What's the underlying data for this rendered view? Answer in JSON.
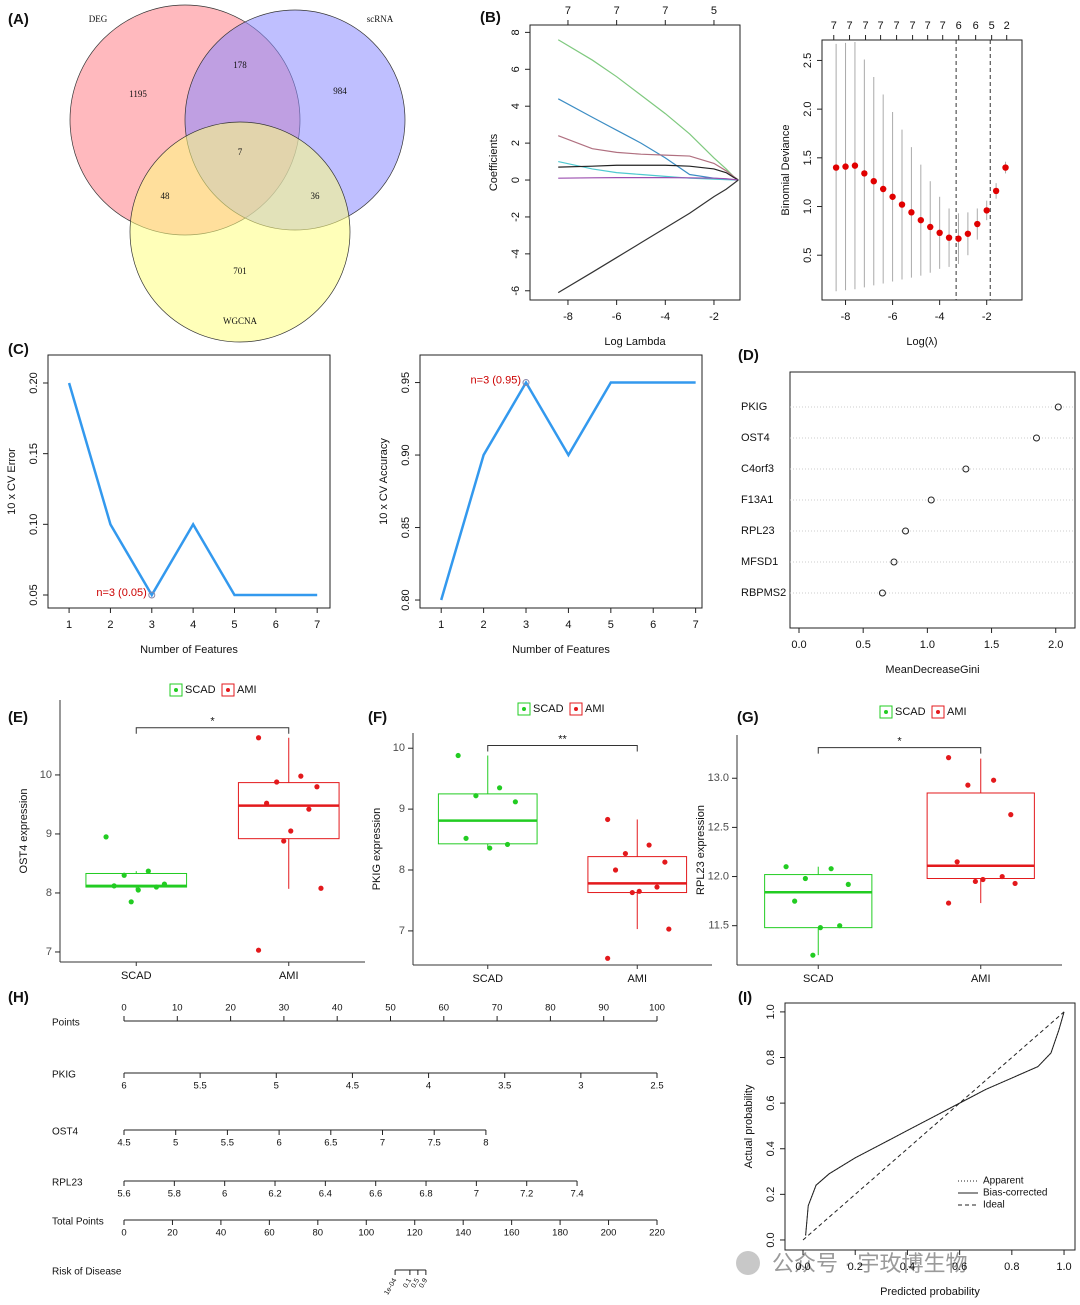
{
  "panel_labels": [
    "(A)",
    "(B)",
    "(C)",
    "(D)",
    "(E)",
    "(F)",
    "(G)",
    "(H)",
    "(I)"
  ],
  "watermark": "公众号 · 宇玫博生物",
  "chart_data": [
    {
      "type": "venn",
      "sets": [
        {
          "name": "DEG",
          "color": "#ff7f88"
        },
        {
          "name": "scRNA",
          "color": "#8a8aff"
        },
        {
          "name": "WGCNA",
          "color": "#ffff80"
        }
      ],
      "counts": [
        1195,
        178,
        984,
        7,
        48,
        36,
        701
      ]
    },
    {
      "type": "line",
      "xlabel": "Log Lambda",
      "ylabel": "Coefficients",
      "x": [
        -8.4,
        -7,
        -6,
        -5,
        -4,
        -3,
        -2,
        -1.5,
        -1.2,
        -1.0
      ],
      "series": [
        {
          "color": "#7fc97f",
          "values": [
            7.6,
            6.5,
            5.6,
            4.6,
            3.6,
            2.5,
            1.2,
            0.6,
            0.2,
            0
          ]
        },
        {
          "color": "#3c8dc4",
          "values": [
            4.4,
            3.4,
            2.7,
            2.0,
            1.2,
            0.3,
            0.1,
            0.05,
            0.02,
            0
          ]
        },
        {
          "color": "#b07080",
          "values": [
            2.4,
            1.7,
            1.5,
            1.4,
            1.35,
            1.3,
            0.9,
            0.5,
            0.2,
            0
          ]
        },
        {
          "color": "#4fc9d0",
          "values": [
            1.0,
            0.6,
            0.4,
            0.3,
            0.2,
            0.1,
            0.05,
            0.02,
            0.01,
            0
          ]
        },
        {
          "color": "#222222",
          "values": [
            0.7,
            0.75,
            0.8,
            0.8,
            0.8,
            0.75,
            0.6,
            0.4,
            0.15,
            0
          ]
        },
        {
          "color": "#9b4fb0",
          "values": [
            0.1,
            0.12,
            0.13,
            0.13,
            0.13,
            0.12,
            0.1,
            0.07,
            0.03,
            0
          ]
        },
        {
          "color": "#333333",
          "values": [
            -6.1,
            -5.0,
            -4.2,
            -3.4,
            -2.6,
            -1.8,
            -0.9,
            -0.5,
            -0.2,
            0
          ]
        }
      ],
      "xlim": [
        -9.56,
        -0.93
      ],
      "xticks": [
        -8,
        -6,
        -4,
        -2
      ],
      "ylim": [
        -6.5,
        8.4
      ],
      "yticks": [
        -6,
        -4,
        -2,
        0,
        2,
        4,
        6,
        8
      ],
      "top_ticks": [
        {
          "value": -8,
          "label": "7"
        },
        {
          "value": -6,
          "label": "7"
        },
        {
          "value": -4,
          "label": "7"
        },
        {
          "value": -2,
          "label": "5"
        }
      ]
    },
    {
      "type": "errorbar",
      "xlabel": "Log(λ)",
      "ylabel": "Binomial Deviance",
      "color": "#e00000",
      "x": [
        -8.4,
        -8.0,
        -7.6,
        -7.2,
        -6.8,
        -6.4,
        -6.0,
        -5.6,
        -5.2,
        -4.8,
        -4.4,
        -4.0,
        -3.6,
        -3.2,
        -2.8,
        -2.4,
        -2.0,
        -1.6,
        -1.2
      ],
      "values": [
        1.4,
        1.41,
        1.42,
        1.34,
        1.26,
        1.18,
        1.1,
        1.02,
        0.94,
        0.86,
        0.79,
        0.73,
        0.68,
        0.67,
        0.72,
        0.82,
        0.96,
        1.16,
        1.4
      ],
      "errors": [
        1.27,
        1.27,
        1.27,
        1.17,
        1.07,
        0.97,
        0.87,
        0.77,
        0.67,
        0.57,
        0.47,
        0.37,
        0.3,
        0.26,
        0.22,
        0.16,
        0.1,
        0.08,
        0.06
      ],
      "vlines": [
        -3.3,
        -1.85
      ],
      "xlim": [
        -9.0,
        -0.5
      ],
      "xticks": [
        -8,
        -6,
        -4,
        -2
      ],
      "ylim": [
        0.04,
        2.71
      ],
      "yticks": [
        0.5,
        {
          "value": 1.0,
          "label": "1.0"
        },
        1.5,
        {
          "value": 2.0,
          "label": "2.0"
        },
        2.5
      ],
      "top_ticks": [
        {
          "value": -8.5,
          "label": "7"
        },
        {
          "value": -7.83,
          "label": "7"
        },
        {
          "value": -7.15,
          "label": "7"
        },
        {
          "value": -6.51,
          "label": "7"
        },
        {
          "value": -5.83,
          "label": "7"
        },
        {
          "value": -5.15,
          "label": "7"
        },
        {
          "value": -4.51,
          "label": "7"
        },
        {
          "value": -3.87,
          "label": "7"
        },
        {
          "value": -3.19,
          "label": "6"
        },
        {
          "value": -2.47,
          "label": "6"
        },
        {
          "value": -1.79,
          "label": "5"
        },
        {
          "value": -1.15,
          "label": "2"
        }
      ]
    },
    {
      "type": "line",
      "xlabel": "Number of Features",
      "ylabel": "10 x CV Error",
      "color": "#3399ee",
      "x": [
        1,
        2,
        3,
        4,
        5,
        6,
        7
      ],
      "values": [
        0.2,
        0.1,
        0.05,
        0.1,
        0.05,
        0.05,
        0.05
      ],
      "annotation": {
        "text": "n=3 (0.05)",
        "x": 3,
        "y": 0.05,
        "color": "#cc0000"
      },
      "xlim": [
        0.49,
        7.31
      ],
      "xticks": [
        1,
        2,
        3,
        4,
        5,
        6,
        7
      ],
      "ylim": [
        0.0408,
        0.2198
      ],
      "yticks": [
        0.05,
        {
          "value": 0.1,
          "label": "0.10"
        },
        0.15,
        {
          "value": 0.2,
          "label": "0.20"
        }
      ]
    },
    {
      "type": "line",
      "xlabel": "Number of Features",
      "ylabel": "10 x CV Accuracy",
      "color": "#3399ee",
      "x": [
        1,
        2,
        3,
        4,
        5,
        6,
        7
      ],
      "values": [
        0.8,
        0.9,
        0.95,
        0.9,
        0.95,
        0.95,
        0.95
      ],
      "annotation": {
        "text": "n=3 (0.95)",
        "x": 3,
        "y": 0.95,
        "color": "#cc0000"
      },
      "xlim": [
        0.5,
        7.15
      ],
      "xticks": [
        1,
        2,
        3,
        4,
        5,
        6,
        7
      ],
      "ylim": [
        0.7945,
        0.969
      ],
      "yticks": [
        {
          "value": 0.8,
          "label": "0.80"
        },
        0.85,
        {
          "value": 0.9,
          "label": "0.90"
        },
        0.95
      ]
    },
    {
      "type": "dot",
      "xlabel": "MeanDecreaseGini",
      "categories": [
        "PKIG",
        "OST4",
        "C4orf3",
        "F13A1",
        "RPL23",
        "MFSD1",
        "RBPMS2"
      ],
      "values": [
        2.02,
        1.85,
        1.3,
        1.03,
        0.83,
        0.74,
        0.65
      ],
      "xlim": [
        -0.07,
        2.15
      ],
      "xticks": [
        {
          "value": 0.0,
          "label": "0.0"
        },
        0.5,
        {
          "value": 1.0,
          "label": "1.0"
        },
        1.5,
        {
          "value": 2.0,
          "label": "2.0"
        }
      ]
    },
    {
      "type": "box",
      "ylabel": "OST4 expression",
      "significance": "*",
      "groups": [
        {
          "name": "SCAD",
          "color": "#22cc22",
          "whisker_low": 8.05,
          "q1": 8.1,
          "median": 8.12,
          "q3": 8.33,
          "whisker_high": 8.37,
          "points": [
            8.95,
            8.37,
            8.3,
            8.15,
            8.12,
            8.1,
            8.05,
            7.85
          ]
        },
        {
          "name": "AMI",
          "color": "#e3191c",
          "whisker_low": 8.07,
          "q1": 8.92,
          "median": 9.48,
          "q3": 9.87,
          "whisker_high": 10.63,
          "points": [
            10.63,
            9.98,
            9.88,
            9.8,
            9.52,
            9.42,
            9.05,
            8.88,
            8.08,
            7.03
          ]
        }
      ],
      "ylim": [
        6.83,
        11.27
      ],
      "yticks": [
        7,
        8,
        9,
        10
      ]
    },
    {
      "type": "box",
      "ylabel": "PKIG expression",
      "significance": "**",
      "groups": [
        {
          "name": "SCAD",
          "color": "#22cc22",
          "whisker_low": 8.35,
          "q1": 8.43,
          "median": 8.81,
          "q3": 9.25,
          "whisker_high": 9.88,
          "points": [
            9.88,
            9.35,
            9.22,
            9.12,
            8.52,
            8.42,
            8.36
          ]
        },
        {
          "name": "AMI",
          "color": "#e3191c",
          "whisker_low": 7.03,
          "q1": 7.63,
          "median": 7.78,
          "q3": 8.22,
          "whisker_high": 8.83,
          "points": [
            8.83,
            8.41,
            8.27,
            8.13,
            8.0,
            7.72,
            7.65,
            7.63,
            7.03,
            6.55
          ]
        }
      ],
      "ylim": [
        6.44,
        10.25
      ],
      "yticks": [
        7,
        8,
        9,
        10
      ]
    },
    {
      "type": "box",
      "ylabel": "RPL23 expression",
      "significance": "*",
      "groups": [
        {
          "name": "SCAD",
          "color": "#22cc22",
          "whisker_low": 11.2,
          "q1": 11.48,
          "median": 11.84,
          "q3": 12.02,
          "whisker_high": 12.1,
          "points": [
            12.1,
            12.08,
            11.98,
            11.92,
            11.75,
            11.5,
            11.48,
            11.2
          ]
        },
        {
          "name": "AMI",
          "color": "#e3191c",
          "whisker_low": 11.73,
          "q1": 11.98,
          "median": 12.11,
          "q3": 12.85,
          "whisker_high": 13.2,
          "points": [
            13.21,
            12.98,
            12.93,
            12.63,
            12.15,
            12.0,
            11.97,
            11.95,
            11.93,
            11.73
          ]
        }
      ],
      "ylim": [
        11.1,
        13.44
      ],
      "yticks": [
        11.5,
        {
          "value": 12.0,
          "label": "12.0"
        },
        12.5,
        {
          "value": 13.0,
          "label": "13.0"
        }
      ]
    },
    {
      "type": "nomogram",
      "rows": [
        {
          "label": "Points",
          "lim": [
            0,
            100
          ],
          "ticks": [
            0,
            10,
            20,
            30,
            40,
            50,
            60,
            70,
            80,
            90,
            100
          ]
        },
        {
          "label": "PKIG",
          "lim": [
            6,
            2.5
          ],
          "points": [
            0,
            100
          ],
          "ticks": [
            6,
            5.5,
            5,
            4.5,
            4,
            3.5,
            3,
            2.5
          ]
        },
        {
          "label": "OST4",
          "lim": [
            4.5,
            8
          ],
          "points": [
            0,
            67.9
          ],
          "ticks": [
            4.5,
            5,
            5.5,
            6,
            6.5,
            7,
            7.5,
            8
          ]
        },
        {
          "label": "RPL23",
          "lim": [
            5.6,
            7.4
          ],
          "points": [
            0,
            85
          ],
          "ticks": [
            5.6,
            5.8,
            6,
            6.2,
            6.4,
            6.6,
            6.8,
            7,
            7.2,
            7.4
          ]
        },
        {
          "label": "Total Points",
          "lim": [
            0,
            220
          ],
          "ticks": [
            0,
            20,
            40,
            60,
            80,
            100,
            120,
            140,
            160,
            180,
            200,
            220
          ]
        },
        {
          "label": "Risk of Disease",
          "ticks": [
            {
              "value": 0.0001,
              "label": "1e-04"
            },
            0.1,
            0.5,
            0.9
          ],
          "tick_total_points": [
            111.9,
            118.0,
            121.3,
            124.6
          ]
        }
      ]
    },
    {
      "type": "calibration",
      "xlabel": "Predicted probability",
      "ylabel": "Actual probability",
      "series": [
        {
          "name": "Apparent",
          "style": "dotted",
          "x": [
            0.01,
            0.02,
            0.05,
            0.1,
            0.2,
            0.3,
            0.4,
            0.5,
            0.6,
            0.7,
            0.8,
            0.9,
            0.95,
            0.98,
            1.0
          ],
          "values": [
            0.02,
            0.15,
            0.24,
            0.29,
            0.36,
            0.42,
            0.48,
            0.54,
            0.6,
            0.66,
            0.71,
            0.76,
            0.82,
            0.92,
            1.0
          ]
        },
        {
          "name": "Bias-corrected",
          "style": "solid",
          "x": [
            0.01,
            0.02,
            0.05,
            0.1,
            0.2,
            0.3,
            0.4,
            0.5,
            0.6,
            0.7,
            0.8,
            0.9,
            0.95,
            0.98,
            1.0
          ],
          "values": [
            0.02,
            0.15,
            0.24,
            0.29,
            0.36,
            0.42,
            0.48,
            0.54,
            0.6,
            0.66,
            0.71,
            0.76,
            0.82,
            0.92,
            1.0
          ]
        },
        {
          "name": "Ideal",
          "style": "dashed",
          "x": [
            0,
            1
          ],
          "values": [
            0,
            1
          ]
        }
      ],
      "xlim": [
        -0.069,
        1.042
      ],
      "xticks": [
        {
          "value": 0.0,
          "label": "0.0"
        },
        0.2,
        0.4,
        0.6,
        0.8,
        {
          "value": 1.0,
          "label": "1.0"
        }
      ],
      "ylim": [
        -0.044,
        1.039
      ],
      "yticks": [
        {
          "value": 0.0,
          "label": "0.0"
        },
        0.2,
        0.4,
        0.6,
        0.8,
        {
          "value": 1.0,
          "label": "1.0"
        }
      ]
    }
  ]
}
